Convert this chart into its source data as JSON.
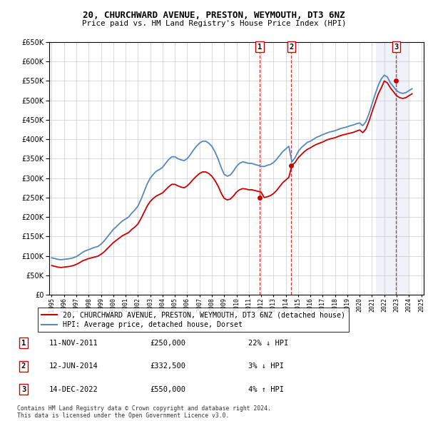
{
  "title1": "20, CHURCHWARD AVENUE, PRESTON, WEYMOUTH, DT3 6NZ",
  "title2": "Price paid vs. HM Land Registry's House Price Index (HPI)",
  "ytick_values": [
    0,
    50000,
    100000,
    150000,
    200000,
    250000,
    300000,
    350000,
    400000,
    450000,
    500000,
    550000,
    600000,
    650000
  ],
  "legend_line1": "20, CHURCHWARD AVENUE, PRESTON, WEYMOUTH, DT3 6NZ (detached house)",
  "legend_line2": "HPI: Average price, detached house, Dorset",
  "transactions": [
    {
      "num": 1,
      "date": "11-NOV-2011",
      "price": "£250,000",
      "hpi": "22% ↓ HPI",
      "year": 2011.87
    },
    {
      "num": 2,
      "date": "12-JUN-2014",
      "price": "£332,500",
      "hpi": "3% ↓ HPI",
      "year": 2014.45
    },
    {
      "num": 3,
      "date": "14-DEC-2022",
      "price": "£550,000",
      "hpi": "4% ↑ HPI",
      "year": 2022.96
    }
  ],
  "copyright": "Contains HM Land Registry data © Crown copyright and database right 2024.\nThis data is licensed under the Open Government Licence v3.0.",
  "red_color": "#cc0000",
  "blue_color": "#5588bb",
  "blue_fill": "#aabbdd",
  "vline_color": "#dd3333",
  "grid_color": "#cccccc",
  "hpi_data": {
    "years": [
      1995.0,
      1995.25,
      1995.5,
      1995.75,
      1996.0,
      1996.25,
      1996.5,
      1996.75,
      1997.0,
      1997.25,
      1997.5,
      1997.75,
      1998.0,
      1998.25,
      1998.5,
      1998.75,
      1999.0,
      1999.25,
      1999.5,
      1999.75,
      2000.0,
      2000.25,
      2000.5,
      2000.75,
      2001.0,
      2001.25,
      2001.5,
      2001.75,
      2002.0,
      2002.25,
      2002.5,
      2002.75,
      2003.0,
      2003.25,
      2003.5,
      2003.75,
      2004.0,
      2004.25,
      2004.5,
      2004.75,
      2005.0,
      2005.25,
      2005.5,
      2005.75,
      2006.0,
      2006.25,
      2006.5,
      2006.75,
      2007.0,
      2007.25,
      2007.5,
      2007.75,
      2008.0,
      2008.25,
      2008.5,
      2008.75,
      2009.0,
      2009.25,
      2009.5,
      2009.75,
      2010.0,
      2010.25,
      2010.5,
      2010.75,
      2011.0,
      2011.25,
      2011.5,
      2011.75,
      2012.0,
      2012.25,
      2012.5,
      2012.75,
      2013.0,
      2013.25,
      2013.5,
      2013.75,
      2014.0,
      2014.25,
      2014.5,
      2014.75,
      2015.0,
      2015.25,
      2015.5,
      2015.75,
      2016.0,
      2016.25,
      2016.5,
      2016.75,
      2017.0,
      2017.25,
      2017.5,
      2017.75,
      2018.0,
      2018.25,
      2018.5,
      2018.75,
      2019.0,
      2019.25,
      2019.5,
      2019.75,
      2020.0,
      2020.25,
      2020.5,
      2020.75,
      2021.0,
      2021.25,
      2021.5,
      2021.75,
      2022.0,
      2022.25,
      2022.5,
      2022.75,
      2023.0,
      2023.25,
      2023.5,
      2023.75,
      2024.0,
      2024.25
    ],
    "values": [
      95000,
      93000,
      91000,
      90000,
      91000,
      92000,
      93000,
      95000,
      98000,
      103000,
      109000,
      113000,
      116000,
      119000,
      122000,
      124000,
      130000,
      138000,
      148000,
      158000,
      168000,
      175000,
      183000,
      190000,
      195000,
      200000,
      210000,
      218000,
      228000,
      245000,
      265000,
      285000,
      300000,
      310000,
      318000,
      322000,
      328000,
      338000,
      348000,
      355000,
      355000,
      350000,
      347000,
      345000,
      350000,
      360000,
      372000,
      382000,
      390000,
      395000,
      395000,
      390000,
      382000,
      368000,
      350000,
      328000,
      310000,
      305000,
      308000,
      318000,
      330000,
      338000,
      342000,
      340000,
      338000,
      338000,
      335000,
      333000,
      330000,
      330000,
      333000,
      335000,
      340000,
      348000,
      358000,
      368000,
      375000,
      382000,
      342000,
      352000,
      368000,
      378000,
      385000,
      392000,
      395000,
      400000,
      405000,
      408000,
      412000,
      415000,
      418000,
      420000,
      422000,
      425000,
      428000,
      430000,
      432000,
      435000,
      437000,
      440000,
      442000,
      435000,
      445000,
      465000,
      490000,
      515000,
      538000,
      555000,
      565000,
      560000,
      545000,
      535000,
      525000,
      520000,
      518000,
      520000,
      525000,
      530000
    ]
  },
  "red_data": {
    "years": [
      1995.0,
      1995.25,
      1995.5,
      1995.75,
      1996.0,
      1996.25,
      1996.5,
      1996.75,
      1997.0,
      1997.25,
      1997.5,
      1997.75,
      1998.0,
      1998.25,
      1998.5,
      1998.75,
      1999.0,
      1999.25,
      1999.5,
      1999.75,
      2000.0,
      2000.25,
      2000.5,
      2000.75,
      2001.0,
      2001.25,
      2001.5,
      2001.75,
      2002.0,
      2002.25,
      2002.5,
      2002.75,
      2003.0,
      2003.25,
      2003.5,
      2003.75,
      2004.0,
      2004.25,
      2004.5,
      2004.75,
      2005.0,
      2005.25,
      2005.5,
      2005.75,
      2006.0,
      2006.25,
      2006.5,
      2006.75,
      2007.0,
      2007.25,
      2007.5,
      2007.75,
      2008.0,
      2008.25,
      2008.5,
      2008.75,
      2009.0,
      2009.25,
      2009.5,
      2009.75,
      2010.0,
      2010.25,
      2010.5,
      2010.75,
      2011.0,
      2011.25,
      2011.5,
      2011.75,
      2012.0,
      2012.25,
      2012.5,
      2012.75,
      2013.0,
      2013.25,
      2013.5,
      2013.75,
      2014.0,
      2014.25,
      2014.5,
      2014.75,
      2015.0,
      2015.25,
      2015.5,
      2015.75,
      2016.0,
      2016.25,
      2016.5,
      2016.75,
      2017.0,
      2017.25,
      2017.5,
      2017.75,
      2018.0,
      2018.25,
      2018.5,
      2018.75,
      2019.0,
      2019.25,
      2019.5,
      2019.75,
      2020.0,
      2020.25,
      2020.5,
      2020.75,
      2021.0,
      2021.25,
      2021.5,
      2021.75,
      2022.0,
      2022.25,
      2022.5,
      2022.75,
      2023.0,
      2023.25,
      2023.5,
      2023.75,
      2024.0,
      2024.25
    ],
    "values": [
      75000,
      73000,
      71000,
      70000,
      71000,
      72000,
      73000,
      75000,
      78000,
      82000,
      87000,
      90000,
      93000,
      95000,
      97000,
      99000,
      104000,
      110000,
      118000,
      126000,
      134000,
      140000,
      146000,
      152000,
      156000,
      160000,
      168000,
      174000,
      182000,
      196000,
      212000,
      228000,
      240000,
      248000,
      254000,
      258000,
      262000,
      270000,
      278000,
      284000,
      284000,
      280000,
      277000,
      275000,
      280000,
      288000,
      297000,
      305000,
      312000,
      316000,
      316000,
      312000,
      305000,
      294000,
      280000,
      262000,
      248000,
      244000,
      246000,
      254000,
      264000,
      270000,
      273000,
      272000,
      270000,
      270000,
      268000,
      266000,
      264000,
      250000,
      252000,
      255000,
      260000,
      268000,
      278000,
      288000,
      295000,
      302000,
      332500,
      340000,
      352000,
      360000,
      368000,
      374000,
      378000,
      383000,
      387000,
      390000,
      393000,
      397000,
      400000,
      402000,
      404000,
      407000,
      410000,
      412000,
      414000,
      416000,
      418000,
      421000,
      424000,
      417000,
      426000,
      446000,
      470000,
      493000,
      516000,
      532000,
      550000,
      545000,
      532000,
      522000,
      512000,
      507000,
      505000,
      507000,
      512000,
      517000
    ]
  },
  "sale_years": [
    2011.87,
    2014.45,
    2022.96
  ],
  "sale_prices": [
    250000,
    332500,
    550000
  ],
  "xlim": [
    1994.8,
    2025.2
  ],
  "ylim": [
    0,
    650000
  ],
  "span_x0": 2021.3,
  "span_x1": 2024.0
}
